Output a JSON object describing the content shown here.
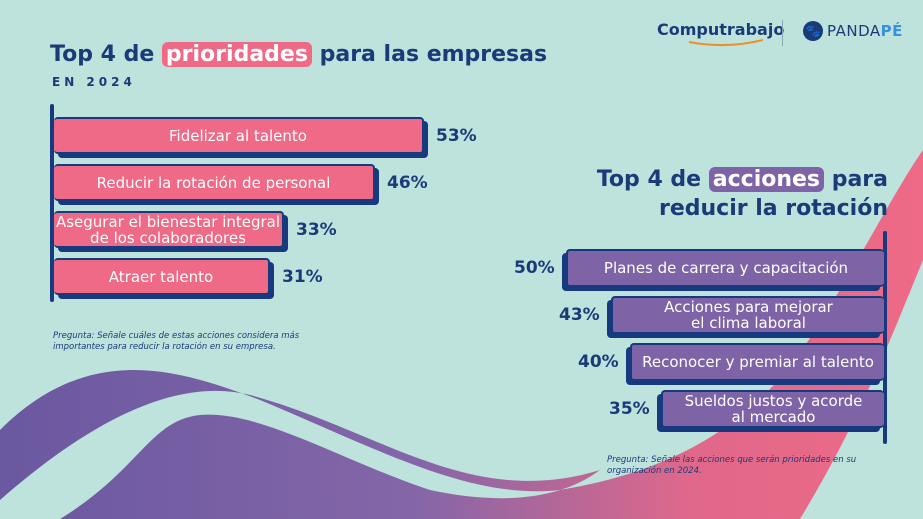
{
  "colors": {
    "background": "#bde3dc",
    "navy": "#1b3a78",
    "pink": "#ee6a86",
    "purple": "#7e64a6",
    "accent_blue": "#3a8fe0",
    "orange": "#f28c28"
  },
  "logos": {
    "computrabajo": "Computrabajo",
    "pandape_a": "PANDA",
    "pandape_b": "PÉ",
    "paw_icon": "paw-icon"
  },
  "left": {
    "title_a": "Top 4 de",
    "title_highlight": "prioridades",
    "title_b": "para las empresas",
    "subtitle": "EN 2024",
    "note_line1": "Pregunta: Señale cuáles de estas acciones considera más",
    "note_line2": "importantes para reducir la rotación en su empresa."
  },
  "right": {
    "title_a": "Top 4 de",
    "title_highlight": "acciones",
    "title_b": "para",
    "title_line2": "reducir la rotación",
    "note_line1": "Pregunta: Señale las acciones que serán prioridades en su",
    "note_line2": "organización en 2024."
  },
  "chart_data": [
    {
      "type": "bar",
      "orientation": "horizontal",
      "title": "Top 4 de prioridades para las empresas",
      "subtitle": "EN 2024",
      "categories": [
        "Fidelizar al talento",
        "Reducir la rotación de personal",
        "Asegurar el bienestar integral de los colaboradores",
        "Atraer talento"
      ],
      "label_lines": [
        [
          "Fidelizar al talento"
        ],
        [
          "Reducir la rotación de personal"
        ],
        [
          "Asegurar el bienestar integral",
          "de los colaboradores"
        ],
        [
          "Atraer talento"
        ]
      ],
      "values": [
        53,
        46,
        33,
        31
      ],
      "value_labels": [
        "53%",
        "46%",
        "33%",
        "31%"
      ],
      "unit": "%",
      "xlim": [
        0,
        53
      ]
    },
    {
      "type": "bar",
      "orientation": "horizontal",
      "direction": "right-to-left",
      "title": "Top 4 de acciones para reducir la rotación",
      "categories": [
        "Planes de carrera y capacitación",
        "Acciones para mejorar el clima laboral",
        "Reconocer y premiar al talento",
        "Sueldos justos y acorde al mercado"
      ],
      "label_lines": [
        [
          "Planes de carrera y capacitación"
        ],
        [
          "Acciones para mejorar",
          "el clima laboral"
        ],
        [
          "Reconocer y premiar al talento"
        ],
        [
          "Sueldos justos y acorde",
          "al mercado"
        ]
      ],
      "values": [
        50,
        43,
        40,
        35
      ],
      "value_labels": [
        "50%",
        "43%",
        "40%",
        "35%"
      ],
      "unit": "%",
      "xlim": [
        0,
        50
      ]
    }
  ]
}
